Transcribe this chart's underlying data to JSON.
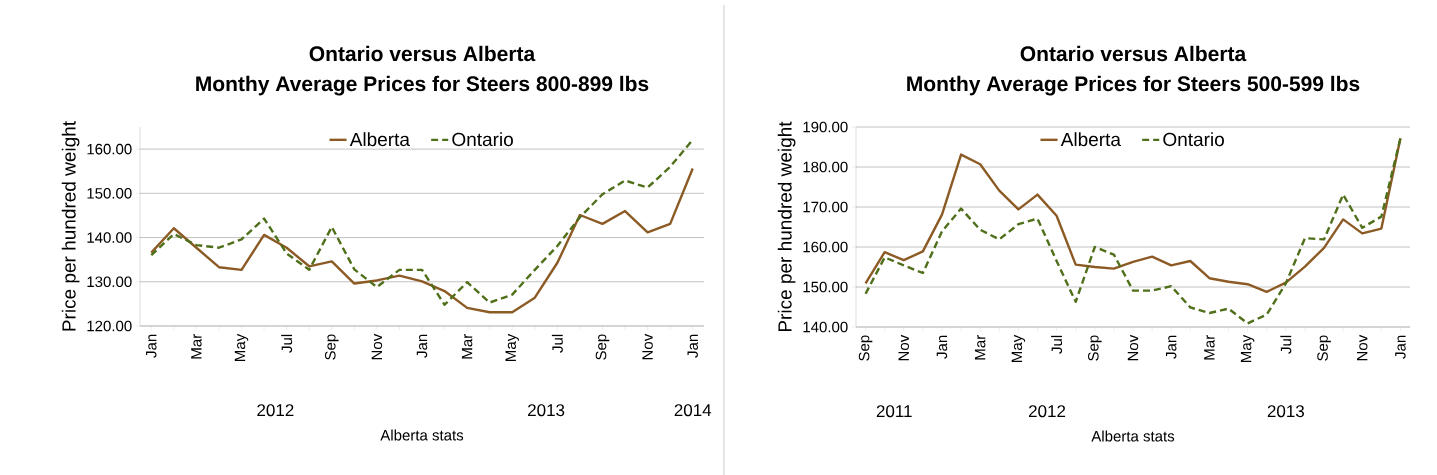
{
  "chart_data": [
    {
      "type": "line",
      "title": "Ontario versus Alberta",
      "subtitle": "Monthy Average Prices for Steers 800-899 lbs",
      "ylabel": "Price per hundred weight",
      "xlabel": "Alberta stats",
      "categories": [
        "Jan",
        null,
        "Mar",
        null,
        "May",
        null,
        "Jul",
        null,
        "Sep",
        null,
        "Nov",
        null,
        "Jan",
        null,
        "Mar",
        null,
        "May",
        null,
        "Jul",
        null,
        "Sep",
        null,
        "Nov",
        null,
        "Jan"
      ],
      "series": [
        {
          "name": "Alberta",
          "color": "#8c5a24",
          "line_style": "solid",
          "values": [
            136.6,
            142.1,
            137.7,
            133.3,
            132.7,
            140.6,
            137.7,
            133.5,
            134.6,
            129.6,
            130.3,
            131.4,
            130.1,
            127.9,
            124.1,
            123.1,
            123.1,
            126.4,
            134.3,
            145.1,
            143.1,
            146.0,
            141.2,
            143.1,
            155.6
          ]
        },
        {
          "name": "Ontario",
          "color": "#4f6f1a",
          "line_style": "dashed",
          "values": [
            136.0,
            140.8,
            138.3,
            137.7,
            139.6,
            144.3,
            136.4,
            132.7,
            142.4,
            132.8,
            128.8,
            132.7,
            132.7,
            124.8,
            129.9,
            125.3,
            127.1,
            132.7,
            138.1,
            144.6,
            149.8,
            152.9,
            151.3,
            156.0,
            162.1
          ]
        }
      ],
      "ylim": [
        120,
        165
      ],
      "yticks": [
        {
          "value": 120,
          "label": "120.00"
        },
        {
          "value": 130,
          "label": "130.00"
        },
        {
          "value": 140,
          "label": "140.00"
        },
        {
          "value": 150,
          "label": "150.00"
        },
        {
          "value": 160,
          "label": "160.00"
        }
      ],
      "grid": "y",
      "legend": "top",
      "marker": "none",
      "annotations": [
        "2012",
        "2013",
        "2014"
      ]
    },
    {
      "type": "line",
      "title": "Ontario versus Alberta",
      "subtitle": "Monthy Average Prices for Steers 500-599 lbs",
      "ylabel": "Price per hundred weight",
      "xlabel": "Alberta stats",
      "categories": [
        "Sep",
        null,
        "Nov",
        null,
        "Jan",
        null,
        "Mar",
        null,
        "May",
        null,
        "Jul",
        null,
        "Sep",
        null,
        "Nov",
        null,
        "Jan",
        null,
        "Mar",
        null,
        "May",
        null,
        "Jul",
        null,
        "Sep",
        null,
        "Nov",
        null,
        "Jan"
      ],
      "series": [
        {
          "name": "Alberta",
          "color": "#8c5a24",
          "line_style": "solid",
          "values": [
            150.9,
            158.7,
            156.7,
            158.9,
            168.1,
            183.1,
            180.7,
            174.1,
            169.4,
            173.1,
            167.8,
            155.6,
            155.0,
            154.6,
            156.3,
            157.6,
            155.4,
            156.5,
            152.2,
            151.3,
            150.7,
            148.8,
            151.1,
            155.1,
            159.8,
            166.9,
            163.4,
            164.6,
            187.2
          ]
        },
        {
          "name": "Ontario",
          "color": "#4f6f1a",
          "line_style": "dashed",
          "values": [
            148.3,
            157.4,
            155.4,
            153.5,
            163.9,
            169.6,
            164.3,
            161.9,
            165.7,
            167.1,
            156.5,
            146.3,
            160.0,
            158.1,
            149.1,
            149.1,
            150.2,
            144.9,
            143.5,
            144.6,
            140.9,
            143.1,
            150.9,
            162.2,
            161.9,
            173.1,
            164.8,
            167.6,
            187.2
          ]
        }
      ],
      "ylim": [
        140,
        190
      ],
      "yticks": [
        {
          "value": 140,
          "label": "140.00"
        },
        {
          "value": 150,
          "label": "150.00"
        },
        {
          "value": 160,
          "label": "160.00"
        },
        {
          "value": 170,
          "label": "170.00"
        },
        {
          "value": 180,
          "label": "180.00"
        },
        {
          "value": 190,
          "label": "190.00"
        }
      ],
      "grid": "y",
      "legend": "top",
      "marker": "none",
      "annotations": [
        "2011",
        "2012",
        "2013"
      ]
    }
  ]
}
